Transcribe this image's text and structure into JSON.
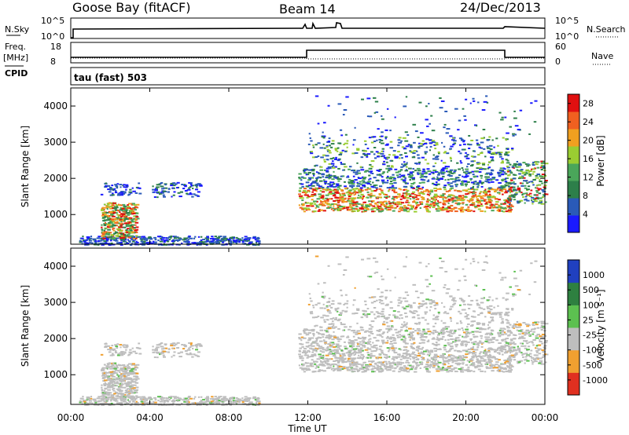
{
  "header": {
    "station": "Goose Bay (fitACF)",
    "beam": "Beam 14",
    "date": "24/Dec/2013"
  },
  "noise_panel": {
    "left_label": "N.Sky",
    "left_ticks": [
      "10^5",
      "10^0"
    ],
    "right_label": "N.Search",
    "right_ticks": [
      "10^5",
      "10^0"
    ]
  },
  "freq_panel": {
    "left_label_1": "Freq.",
    "left_label_2": "[MHz]",
    "left_ticks": [
      "18",
      "8"
    ],
    "right_label": "Nave",
    "right_ticks": [
      "60",
      "0"
    ]
  },
  "cpid": {
    "label": "CPID",
    "value": "tau (fast) 503"
  },
  "colors": {
    "power_scale": [
      "#1a1aff",
      "#2a5ab8",
      "#2d7f4a",
      "#4aa65a",
      "#9acd32",
      "#f0a020",
      "#f06020",
      "#e01010"
    ],
    "velocity_scale": [
      "#2040c0",
      "#2e8040",
      "#5cc050",
      "#bebebe",
      "#f0a030",
      "#e03020"
    ]
  },
  "chart_data": [
    {
      "type": "heatmap",
      "title": "",
      "ylabel": "Slant Range [km]",
      "ylim": [
        180,
        4500
      ],
      "yticks": [
        "1000",
        "2000",
        "3000",
        "4000"
      ],
      "colorbar_label": "Power [dB]",
      "colorbar_ticks": [
        "4",
        "8",
        "12",
        "16",
        "20",
        "24",
        "28"
      ],
      "colorbar_range": [
        0,
        30
      ]
    },
    {
      "type": "heatmap",
      "title": "",
      "ylabel": "Slant Range [km]",
      "ylim": [
        180,
        4500
      ],
      "yticks": [
        "1000",
        "2000",
        "3000",
        "4000"
      ],
      "colorbar_label": "Velocity [m s⁻¹]",
      "colorbar_ticks": [
        "1000",
        "500",
        "100",
        "25",
        "-25",
        "-100",
        "-500",
        "-1000"
      ]
    }
  ],
  "x_axis": {
    "label": "Time UT",
    "ticks": [
      "00:00",
      "04:00",
      "08:00",
      "12:00",
      "16:00",
      "20:00",
      "00:00"
    ],
    "range_hours": [
      0,
      24
    ]
  }
}
